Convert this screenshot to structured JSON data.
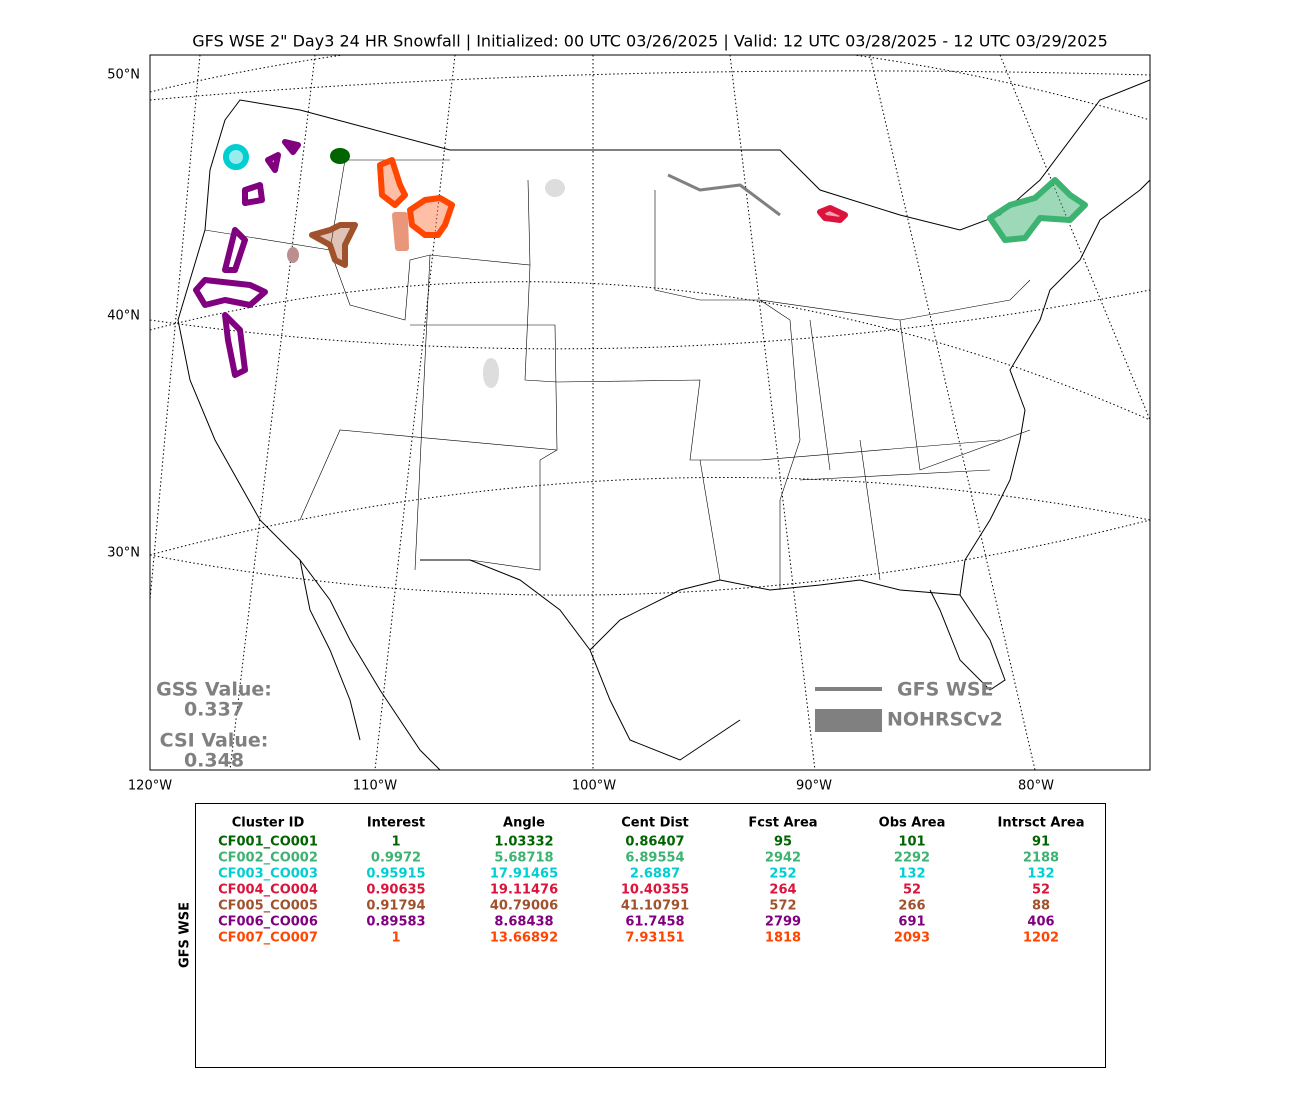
{
  "title": "GFS WSE 2\" Day3 24 HR Snowfall | Initialized: 00 UTC 03/26/2025 | Valid: 12 UTC 03/28/2025 - 12 UTC 03/29/2025",
  "map": {
    "lat_labels": [
      "50°N",
      "40°N",
      "30°N"
    ],
    "lon_labels": [
      "120°W",
      "110°W",
      "100°W",
      "90°W",
      "80°W"
    ],
    "stats": [
      {
        "label": "GSS Value:",
        "value": "0.337"
      },
      {
        "label": "CSI Value:",
        "value": "0.348"
      }
    ],
    "legend": [
      "GFS WSE",
      "NOHRSCv2"
    ]
  },
  "table": {
    "side_label": "GFS WSE",
    "columns": [
      "Cluster ID",
      "Interest",
      "Angle",
      "Cent Dist",
      "Fcst Area",
      "Obs Area",
      "Intrsct Area"
    ],
    "rows": [
      {
        "color": "#006400",
        "cells": [
          "CF001_CO001",
          "1",
          "1.03332",
          "0.86407",
          "95",
          "101",
          "91"
        ]
      },
      {
        "color": "#3cb371",
        "cells": [
          "CF002_CO002",
          "0.9972",
          "5.68718",
          "6.89554",
          "2942",
          "2292",
          "2188"
        ]
      },
      {
        "color": "#00ced1",
        "cells": [
          "CF003_CO003",
          "0.95915",
          "17.91465",
          "2.6887",
          "252",
          "132",
          "132"
        ]
      },
      {
        "color": "#dc143c",
        "cells": [
          "CF004_CO004",
          "0.90635",
          "19.11476",
          "10.40355",
          "264",
          "52",
          "52"
        ]
      },
      {
        "color": "#a0522d",
        "cells": [
          "CF005_CO005",
          "0.91794",
          "40.79006",
          "41.10791",
          "572",
          "266",
          "88"
        ]
      },
      {
        "color": "#800080",
        "cells": [
          "CF006_CO006",
          "0.89583",
          "8.68438",
          "61.7458",
          "2799",
          "691",
          "406"
        ]
      },
      {
        "color": "#ff4500",
        "cells": [
          "CF007_CO007",
          "1",
          "13.66892",
          "7.93151",
          "1818",
          "2093",
          "1202"
        ]
      }
    ]
  }
}
